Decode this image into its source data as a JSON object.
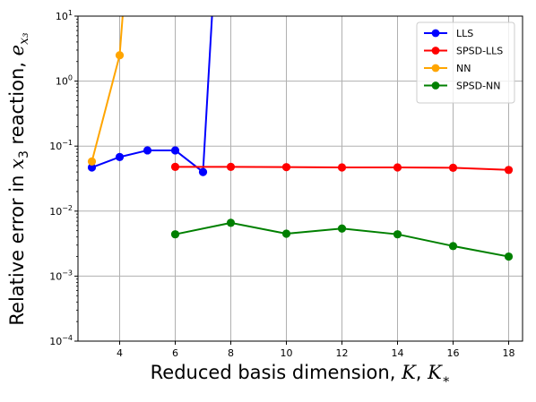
{
  "chart_data": {
    "type": "line",
    "title": "",
    "xlabel": "Reduced basis dimension, K, K∗",
    "ylabel": "Relative error in x₃ reaction, eₓ₃",
    "xlabel_parts": {
      "text": "Reduced basis dimension, ",
      "v1": "K",
      "sep": ", ",
      "v2": "K",
      "v2sub": "∗"
    },
    "ylabel_parts": {
      "text": "Relative error in ",
      "v1": "x",
      "v1sub": "3",
      "mid": " reaction, ",
      "v2": "e",
      "v2sub": "x₃"
    },
    "xscale": "linear",
    "yscale": "log",
    "xlim": [
      2.5,
      18.5
    ],
    "ylim": [
      0.0001,
      10
    ],
    "xticks": [
      4,
      6,
      8,
      10,
      12,
      14,
      16,
      18
    ],
    "xtick_labels": [
      "4",
      "6",
      "8",
      "10",
      "12",
      "14",
      "16",
      "18"
    ],
    "yticks": [
      0.0001,
      0.001,
      0.01,
      0.1,
      1,
      10
    ],
    "ytick_labels": [
      {
        "base": "10",
        "exp": "−4"
      },
      {
        "base": "10",
        "exp": "−3"
      },
      {
        "base": "10",
        "exp": "−2"
      },
      {
        "base": "10",
        "exp": "−1"
      },
      {
        "base": "10",
        "exp": "0"
      },
      {
        "base": "10",
        "exp": "1"
      }
    ],
    "grid": true,
    "legend_position": "top-right",
    "series": [
      {
        "name": "LLS",
        "color": "#0000ff",
        "x": [
          3,
          4,
          5,
          6,
          7,
          8
        ],
        "y": [
          0.047,
          0.068,
          0.086,
          0.086,
          0.04,
          1000000
        ]
      },
      {
        "name": "SPSD-LLS",
        "color": "#ff0000",
        "x": [
          6,
          8,
          10,
          12,
          14,
          16,
          18
        ],
        "y": [
          0.048,
          0.048,
          0.0475,
          0.047,
          0.047,
          0.0465,
          0.043
        ]
      },
      {
        "name": "NN",
        "color": "#ffa500",
        "x": [
          3,
          4,
          5
        ],
        "y": [
          0.058,
          2.5,
          1000000
        ]
      },
      {
        "name": "SPSD-NN",
        "color": "#008000",
        "x": [
          6,
          8,
          10,
          12,
          14,
          16,
          18
        ],
        "y": [
          0.0044,
          0.0066,
          0.0045,
          0.0054,
          0.0044,
          0.0029,
          0.002
        ]
      }
    ]
  }
}
